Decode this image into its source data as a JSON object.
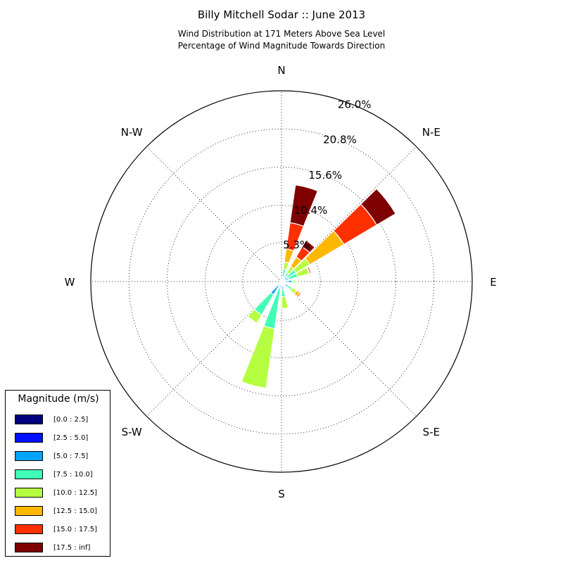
{
  "header": {
    "title": "Billy Mitchell Sodar :: June 2013",
    "subtitle_line1": "Wind Distribution at 171 Meters Above Sea Level",
    "subtitle_line2": "Percentage of Wind Magnitude Towards Direction"
  },
  "chart_data": {
    "type": "windrose",
    "title": "Billy Mitchell Sodar :: June 2013",
    "subtitle": [
      "Wind Distribution at 171 Meters Above Sea Level",
      "Percentage of Wind Magnitude Towards Direction"
    ],
    "directions": [
      "N",
      "N-E",
      "E",
      "S-E",
      "S",
      "S-W",
      "W",
      "N-W"
    ],
    "radial_ticks": [
      5.3,
      10.4,
      15.6,
      20.8,
      26.0
    ],
    "radial_tick_labels": [
      "5.3%",
      "10.4%",
      "15.6%",
      "20.8%",
      "26.0%"
    ],
    "r_max": 26.0,
    "grid": true,
    "legend_title": "Magnitude (m/s)",
    "legend_position": "lower-left",
    "bins": [
      "[0.0 : 2.5]",
      "[2.5 : 5.0]",
      "[5.0 : 7.5]",
      "[7.5 : 10.0]",
      "[10.0 : 12.5]",
      "[12.5 : 15.0]",
      "[15.0 : 17.5]",
      "[17.5 : inf]"
    ],
    "bin_colors": [
      "#00007f",
      "#0010ff",
      "#00a4ff",
      "#40ffb6",
      "#b6ff40",
      "#ffb800",
      "#ff3000",
      "#7f0000"
    ],
    "sectors": [
      {
        "angle": 15,
        "values": [
          0.1,
          0.2,
          0.4,
          1.0,
          1.0,
          1.8,
          3.6,
          5.2
        ]
      },
      {
        "angle": 37.5,
        "values": [
          0.1,
          0.2,
          0.3,
          0.8,
          1.0,
          1.5,
          1.6,
          1.0
        ]
      },
      {
        "angle": 52.5,
        "values": [
          0.1,
          0.3,
          0.5,
          1.4,
          2.2,
          5.4,
          5.2,
          3.0
        ]
      },
      {
        "angle": 67.5,
        "values": [
          0.1,
          0.3,
          0.6,
          1.3,
          1.6,
          0.1,
          0.2,
          0.0
        ]
      },
      {
        "angle": 90,
        "values": [
          0.1,
          0.8,
          0.5,
          0.2,
          0.3,
          0.0,
          0.0,
          0.0
        ]
      },
      {
        "angle": 127.5,
        "values": [
          0.1,
          0.5,
          0.5,
          0.5,
          0.8,
          0.5,
          0.2,
          0.0
        ]
      },
      {
        "angle": 172.5,
        "values": [
          0.1,
          0.5,
          0.5,
          1.0,
          1.6,
          0.1,
          0.0,
          0.0
        ]
      },
      {
        "angle": 195,
        "values": [
          0.1,
          0.3,
          0.5,
          5.6,
          8.2,
          0.0,
          0.0,
          0.0
        ]
      },
      {
        "angle": 217.5,
        "values": [
          0.2,
          0.4,
          1.5,
          3.2,
          1.3,
          0.0,
          0.0,
          0.0
        ]
      },
      {
        "angle": 247.5,
        "values": [
          0.1,
          0.3,
          0.2,
          0.2,
          0.0,
          0.0,
          0.0,
          0.0
        ]
      }
    ]
  }
}
